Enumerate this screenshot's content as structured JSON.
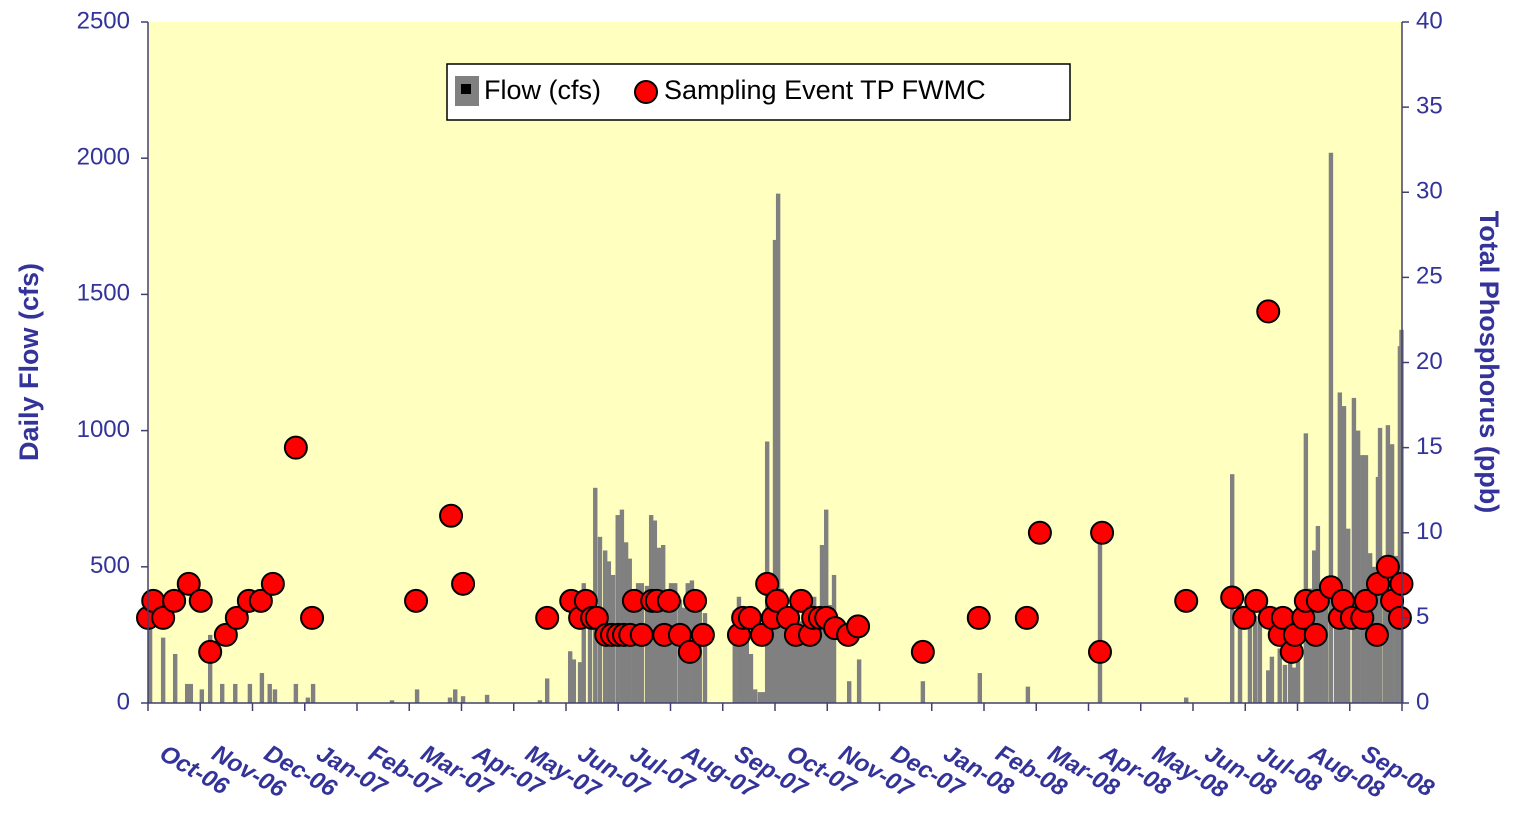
{
  "chart_data": {
    "type": "bar-scatter",
    "y_label": "Daily Flow (cfs)",
    "y2_label": "Total Phosphorus (ppb)",
    "plot_background": "#ffffc0",
    "xlim": [
      0,
      24
    ],
    "xticks": [
      {
        "value": 0,
        "label": "Oct-06"
      },
      {
        "value": 1,
        "label": "Nov-06"
      },
      {
        "value": 2,
        "label": "Dec-06"
      },
      {
        "value": 3,
        "label": "Jan-07"
      },
      {
        "value": 4,
        "label": "Feb-07"
      },
      {
        "value": 5,
        "label": "Mar-07"
      },
      {
        "value": 6,
        "label": "Apr-07"
      },
      {
        "value": 7,
        "label": "May-07"
      },
      {
        "value": 8,
        "label": "Jun-07"
      },
      {
        "value": 9,
        "label": "Jul-07"
      },
      {
        "value": 10,
        "label": "Aug-07"
      },
      {
        "value": 11,
        "label": "Sep-07"
      },
      {
        "value": 12,
        "label": "Oct-07"
      },
      {
        "value": 13,
        "label": "Nov-07"
      },
      {
        "value": 14,
        "label": "Dec-07"
      },
      {
        "value": 15,
        "label": "Jan-08"
      },
      {
        "value": 16,
        "label": "Feb-08"
      },
      {
        "value": 17,
        "label": "Mar-08"
      },
      {
        "value": 18,
        "label": "Apr-08"
      },
      {
        "value": 19,
        "label": "May-08"
      },
      {
        "value": 20,
        "label": "Jun-08"
      },
      {
        "value": 21,
        "label": "Jul-08"
      },
      {
        "value": 22,
        "label": "Aug-08"
      },
      {
        "value": 23,
        "label": "Sep-08"
      }
    ],
    "ylim": [
      0,
      2500
    ],
    "yticks": [
      0,
      500,
      1000,
      1500,
      2000,
      2500
    ],
    "y2lim": [
      0,
      40
    ],
    "y2ticks": [
      0,
      5,
      10,
      15,
      20,
      25,
      30,
      35,
      40
    ],
    "series": [
      {
        "name": "Flow (cfs)",
        "type": "bar",
        "color": "#808080",
        "x": [
          0.04,
          0.29,
          0.52,
          0.75,
          0.82,
          1.03,
          1.19,
          1.42,
          1.67,
          1.95,
          2.18,
          2.33,
          2.43,
          2.83,
          3.06,
          3.16,
          4.67,
          5.15,
          5.78,
          5.88,
          6.03,
          6.49,
          7.5,
          7.64,
          8.08,
          8.15,
          8.27,
          8.34,
          8.46,
          8.56,
          8.65,
          8.75,
          8.82,
          8.9,
          8.99,
          9.07,
          9.15,
          9.22,
          9.3,
          9.38,
          9.45,
          9.55,
          9.63,
          9.7,
          9.78,
          9.86,
          9.93,
          10.01,
          10.09,
          10.18,
          10.26,
          10.33,
          10.41,
          10.49,
          10.56,
          10.66,
          11.23,
          11.31,
          11.39,
          11.46,
          11.54,
          11.62,
          11.71,
          11.79,
          11.85,
          11.92,
          12.0,
          12.06,
          12.13,
          12.21,
          12.29,
          12.36,
          12.44,
          12.52,
          12.59,
          12.67,
          12.75,
          12.82,
          12.9,
          12.98,
          13.05,
          13.13,
          13.42,
          13.61,
          14.83,
          15.92,
          16.84,
          18.22,
          19.87,
          20.75,
          20.9,
          21.09,
          21.19,
          21.28,
          21.44,
          21.51,
          21.66,
          21.76,
          21.86,
          21.93,
          22.01,
          22.16,
          22.24,
          22.32,
          22.39,
          22.47,
          22.55,
          22.64,
          22.74,
          22.81,
          22.89,
          22.97,
          23.08,
          23.16,
          23.24,
          23.31,
          23.39,
          23.46,
          23.54,
          23.58,
          23.67,
          23.73,
          23.81,
          23.89,
          23.96,
          23.99
        ],
        "values": [
          300,
          240,
          180,
          70,
          70,
          50,
          250,
          70,
          70,
          70,
          110,
          70,
          50,
          70,
          20,
          70,
          10,
          50,
          20,
          50,
          25,
          30,
          10,
          90,
          190,
          160,
          150,
          440,
          300,
          790,
          610,
          560,
          520,
          470,
          690,
          710,
          590,
          530,
          400,
          440,
          440,
          430,
          690,
          670,
          570,
          580,
          400,
          440,
          440,
          380,
          350,
          440,
          450,
          390,
          380,
          330,
          340,
          390,
          300,
          330,
          180,
          50,
          40,
          40,
          960,
          450,
          1700,
          1870,
          420,
          350,
          340,
          330,
          300,
          300,
          340,
          380,
          390,
          320,
          580,
          710,
          360,
          470,
          80,
          160,
          80,
          110,
          60,
          600,
          20,
          840,
          360,
          350,
          320,
          300,
          120,
          170,
          200,
          140,
          330,
          130,
          320,
          990,
          420,
          560,
          650,
          370,
          380,
          2020,
          430,
          1140,
          1090,
          640,
          1120,
          1000,
          910,
          910,
          550,
          500,
          830,
          1010,
          380,
          1020,
          950,
          540,
          1310,
          1370
        ]
      },
      {
        "name": "Sampling Event TP FWMC",
        "type": "scatter",
        "axis": "y2",
        "color": "#ff0000",
        "x": [
          0.0,
          0.1,
          0.29,
          0.5,
          0.78,
          1.01,
          1.19,
          1.49,
          1.7,
          1.93,
          2.16,
          2.39,
          2.83,
          3.14,
          5.13,
          5.8,
          6.03,
          7.64,
          8.1,
          8.27,
          8.38,
          8.5,
          8.59,
          8.77,
          8.88,
          9.0,
          9.11,
          9.23,
          9.3,
          9.45,
          9.65,
          9.74,
          9.88,
          9.97,
          10.18,
          10.37,
          10.47,
          10.62,
          11.31,
          11.39,
          11.52,
          11.75,
          11.85,
          11.96,
          12.04,
          12.25,
          12.4,
          12.5,
          12.67,
          12.73,
          12.86,
          12.98,
          13.15,
          13.4,
          13.59,
          14.83,
          15.9,
          16.82,
          17.07,
          18.22,
          18.26,
          19.87,
          20.75,
          20.98,
          21.21,
          21.44,
          21.47,
          21.66,
          21.72,
          21.89,
          21.95,
          22.11,
          22.16,
          22.35,
          22.39,
          22.64,
          22.81,
          22.87,
          23.04,
          23.24,
          23.31,
          23.52,
          23.54,
          23.73,
          23.81,
          23.96,
          23.99
        ],
        "values": [
          5,
          6,
          5,
          6,
          7,
          6,
          3,
          4,
          5,
          6,
          6,
          7,
          15,
          5,
          6,
          11,
          7,
          5,
          6,
          5,
          6,
          5,
          5,
          4,
          4,
          4,
          4,
          4,
          6,
          4,
          6,
          6,
          4,
          6,
          4,
          3,
          6,
          4,
          4,
          5,
          5,
          4,
          7,
          5,
          6,
          5,
          4,
          6,
          4,
          5,
          5,
          5,
          4.4,
          4,
          4.5,
          3,
          5,
          5,
          10,
          3,
          10,
          6,
          6.2,
          5,
          6,
          23,
          5,
          4,
          5,
          3,
          4,
          5,
          6,
          4,
          6,
          6.8,
          5,
          6,
          5,
          5,
          6,
          4,
          7,
          8,
          6,
          5,
          7
        ]
      }
    ]
  }
}
